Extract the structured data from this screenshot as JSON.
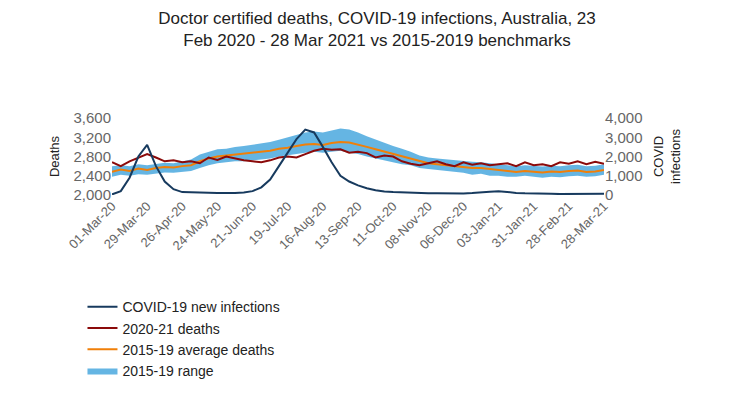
{
  "chart_data": {
    "type": "line",
    "title": "Doctor certified deaths, COVID-19 infections, Australia, 23 Feb 2020 - 28 Mar 2021 vs 2015-2019 benchmarks",
    "y_label": "Deaths",
    "y2_label": "COVID infections",
    "categories": [
      "01-Mar-20",
      null,
      null,
      null,
      "29-Mar-20",
      null,
      null,
      null,
      "26-Apr-20",
      null,
      null,
      null,
      "24-May-20",
      null,
      null,
      null,
      "21-Jun-20",
      null,
      null,
      null,
      "19-Jul-20",
      null,
      null,
      null,
      "16-Aug-20",
      null,
      null,
      null,
      "13-Sep-20",
      null,
      null,
      null,
      "11-Oct-20",
      null,
      null,
      null,
      "08-Nov-20",
      null,
      null,
      null,
      "06-Dec-20",
      null,
      null,
      null,
      "03-Jan-21",
      null,
      null,
      null,
      "31-Jan-21",
      null,
      null,
      null,
      "28-Feb-21",
      null,
      null,
      null,
      "28-Mar-21"
    ],
    "ylim": [
      2000,
      3600
    ],
    "yticks": [
      {
        "value": 2000,
        "label": "2,000"
      },
      {
        "value": 2400,
        "label": "2,400"
      },
      {
        "value": 2800,
        "label": "2,800"
      },
      {
        "value": 3200,
        "label": "3,200"
      },
      {
        "value": 3600,
        "label": "3,600"
      }
    ],
    "y2lim": [
      0,
      4000
    ],
    "y2ticks": [
      0,
      {
        "value": 1000,
        "label": "1,000"
      },
      {
        "value": 2000,
        "label": "2,000"
      },
      {
        "value": 3000,
        "label": "3,000"
      },
      {
        "value": 4000,
        "label": "4,000"
      }
    ],
    "grid": false,
    "legend": "bottom",
    "series": [
      {
        "name": "2015-19 range",
        "type": "range",
        "color": "#4aa8de",
        "low": [
          2380,
          2420,
          2400,
          2430,
          2420,
          2450,
          2470,
          2460,
          2480,
          2500,
          2560,
          2620,
          2660,
          2680,
          2700,
          2700,
          2720,
          2740,
          2760,
          2800,
          2820,
          2850,
          2880,
          2900,
          2880,
          2900,
          2920,
          2880,
          2850,
          2800,
          2760,
          2720,
          2680,
          2640,
          2620,
          2560,
          2540,
          2520,
          2500,
          2480,
          2460,
          2420,
          2440,
          2400,
          2400,
          2380,
          2380,
          2400,
          2380,
          2360,
          2380,
          2370,
          2390,
          2400,
          2380,
          2390,
          2420
        ],
        "high": [
          2600,
          2620,
          2600,
          2640,
          2620,
          2650,
          2670,
          2660,
          2700,
          2740,
          2840,
          2900,
          2950,
          2960,
          3000,
          3020,
          3050,
          3080,
          3100,
          3150,
          3200,
          3250,
          3300,
          3320,
          3300,
          3340,
          3380,
          3360,
          3300,
          3220,
          3150,
          3080,
          3020,
          2960,
          2900,
          2820,
          2780,
          2760,
          2740,
          2720,
          2700,
          2690,
          2680,
          2660,
          2640,
          2620,
          2600,
          2620,
          2600,
          2590,
          2610,
          2600,
          2620,
          2630,
          2600,
          2610,
          2640
        ]
      },
      {
        "name": "2015-19 average deaths",
        "color": "#f07f09",
        "values": [
          2480,
          2530,
          2500,
          2550,
          2520,
          2560,
          2580,
          2570,
          2600,
          2620,
          2700,
          2760,
          2800,
          2820,
          2850,
          2860,
          2880,
          2900,
          2920,
          2960,
          2980,
          3020,
          3050,
          3060,
          3040,
          3080,
          3100,
          3090,
          3050,
          3000,
          2950,
          2900,
          2850,
          2800,
          2760,
          2700,
          2660,
          2640,
          2620,
          2600,
          2580,
          2560,
          2560,
          2540,
          2520,
          2500,
          2480,
          2500,
          2480,
          2470,
          2490,
          2480,
          2500,
          2510,
          2480,
          2490,
          2520
        ]
      },
      {
        "name": "2020-21 deaths",
        "color": "#8b0a0a",
        "values": [
          2680,
          2600,
          2700,
          2780,
          2850,
          2780,
          2700,
          2720,
          2680,
          2700,
          2660,
          2780,
          2730,
          2800,
          2760,
          2720,
          2700,
          2680,
          2720,
          2780,
          2800,
          2780,
          2850,
          2920,
          2960,
          2940,
          2950,
          2880,
          2900,
          2870,
          2780,
          2820,
          2800,
          2700,
          2650,
          2620,
          2660,
          2700,
          2640,
          2600,
          2680,
          2630,
          2660,
          2620,
          2640,
          2660,
          2600,
          2680,
          2620,
          2640,
          2600,
          2680,
          2650,
          2700,
          2640,
          2690,
          2650
        ]
      },
      {
        "name": "COVID-19 new infections",
        "color": "#173a5e",
        "axis": "y2",
        "values": [
          30,
          200,
          900,
          2000,
          2600,
          1500,
          700,
          300,
          150,
          130,
          140,
          120,
          110,
          100,
          110,
          130,
          200,
          400,
          800,
          1500,
          2200,
          2900,
          3400,
          3250,
          2500,
          1700,
          1000,
          700,
          500,
          350,
          250,
          180,
          150,
          130,
          120,
          110,
          90,
          90,
          80,
          90,
          80,
          100,
          150,
          170,
          200,
          150,
          110,
          90,
          70,
          60,
          60,
          50,
          60,
          70,
          80,
          80,
          70
        ]
      }
    ]
  }
}
